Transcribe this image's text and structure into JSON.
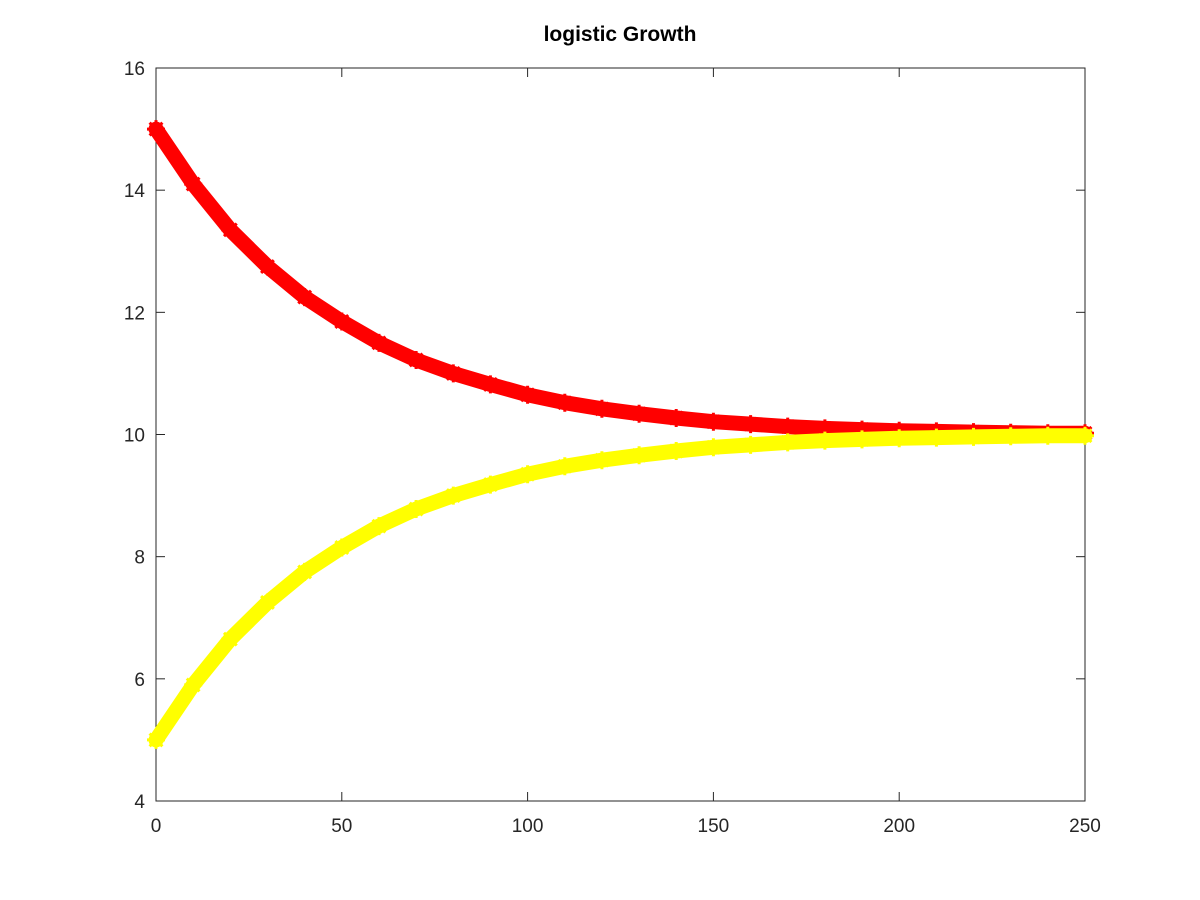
{
  "chart_data": {
    "type": "line",
    "title": "logistic Growth",
    "xlabel": "",
    "ylabel": "",
    "xlim": [
      0,
      250
    ],
    "ylim": [
      4,
      16
    ],
    "x_ticks": [
      0,
      50,
      100,
      150,
      200,
      250
    ],
    "y_ticks": [
      4,
      6,
      8,
      10,
      12,
      14,
      16
    ],
    "grid": false,
    "legend": "none",
    "marker": "*",
    "series": [
      {
        "color": "#ff0000",
        "x": [
          0,
          10,
          20,
          30,
          40,
          50,
          60,
          70,
          80,
          90,
          100,
          110,
          120,
          130,
          140,
          150,
          160,
          170,
          180,
          190,
          200,
          210,
          220,
          230,
          240,
          250
        ],
        "y": [
          15.0,
          14.1,
          13.35,
          12.75,
          12.25,
          11.85,
          11.5,
          11.22,
          11.0,
          10.82,
          10.65,
          10.52,
          10.42,
          10.34,
          10.27,
          10.21,
          10.17,
          10.13,
          10.1,
          10.08,
          10.06,
          10.05,
          10.04,
          10.03,
          10.02,
          10.02
        ]
      },
      {
        "color": "#ffff00",
        "x": [
          0,
          10,
          20,
          30,
          40,
          50,
          60,
          70,
          80,
          90,
          100,
          110,
          120,
          130,
          140,
          150,
          160,
          170,
          180,
          190,
          200,
          210,
          220,
          230,
          240,
          250
        ],
        "y": [
          5.0,
          5.9,
          6.65,
          7.25,
          7.75,
          8.15,
          8.5,
          8.78,
          9.0,
          9.18,
          9.35,
          9.48,
          9.58,
          9.66,
          9.73,
          9.79,
          9.83,
          9.87,
          9.9,
          9.92,
          9.94,
          9.95,
          9.96,
          9.97,
          9.98,
          9.98
        ]
      }
    ]
  }
}
